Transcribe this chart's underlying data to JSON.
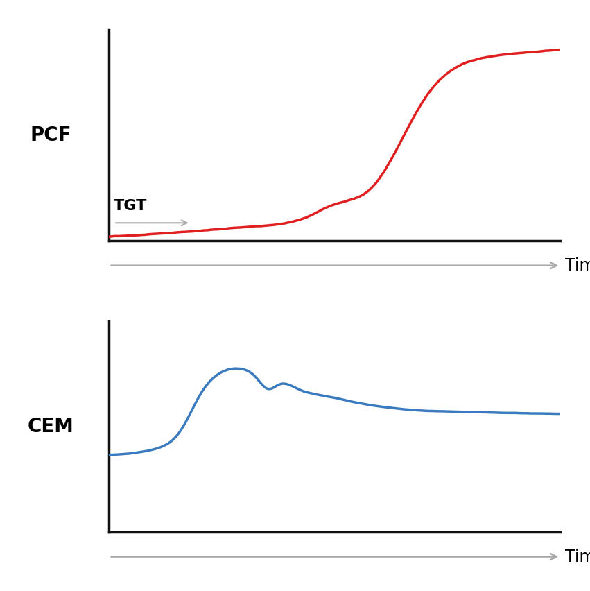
{
  "top_label": "PCF",
  "bottom_label": "CEM",
  "time_label": "Time",
  "tgt_label": "TGT",
  "line_color_top": "#e02020",
  "line_color_bottom": "#3a7bbf",
  "arrow_color": "#aaaaaa",
  "background_color": "#ffffff",
  "axis_color": "#111111",
  "label_fontsize": 20,
  "time_fontsize": 17,
  "tgt_fontsize": 16,
  "line_width": 2.5
}
